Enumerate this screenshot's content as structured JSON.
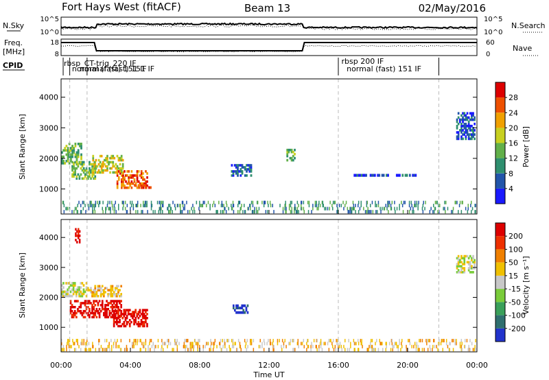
{
  "header": {
    "station": "Fort Hays West (fitACF)",
    "beam": "Beam 13",
    "date": "02/May/2016"
  },
  "noise_panel": {
    "left_label": "N.Sky",
    "left_ticks": [
      "10^5",
      "10^0"
    ],
    "right_ticks": [
      "10^5",
      "10^0"
    ],
    "right_label": "N.Search"
  },
  "freq_panel": {
    "label_line1": "Freq.",
    "label_line2": "[MHz]",
    "left_ticks": [
      "18",
      "8"
    ],
    "right_ticks": [
      "60",
      "0"
    ],
    "right_label": "Nave"
  },
  "cpid_panel": {
    "label": "CPID",
    "mode_labels": [
      {
        "text": "rbsp_CT-trig_220 IF",
        "time": 0.08
      },
      {
        "text": "normal (fast) 151 IF",
        "time": 0.55
      },
      {
        "text": "normal (fast) 151 IF",
        "time": 1.0
      },
      {
        "text": "rbsp 200 IF",
        "time": 16.1
      },
      {
        "text": "normal (fast) 151 IF",
        "time": 16.4
      }
    ]
  },
  "x_axis": {
    "label": "Time UT",
    "tick_labels": [
      "00:00",
      "04:00",
      "08:00",
      "12:00",
      "16:00",
      "20:00",
      "00:00"
    ]
  },
  "chart_data": [
    {
      "type": "heatmap",
      "name": "power",
      "ylabel": "Slant Range [km]",
      "xlim": [
        0,
        24
      ],
      "ylim": [
        180,
        4600
      ],
      "y_ticks": [
        1000,
        2000,
        3000,
        4000
      ],
      "colorbar": {
        "label": "Power [dB]",
        "ticks": [
          "4",
          "8",
          "12",
          "16",
          "20",
          "24",
          "28"
        ],
        "colors": [
          "#1a1aff",
          "#2255aa",
          "#2f8f6f",
          "#62b04a",
          "#c8d020",
          "#f0a000",
          "#ee5000",
          "#dd0000"
        ]
      },
      "mode_change_times": [
        0.5,
        1.5,
        16.0,
        21.8
      ],
      "echo_regions": [
        {
          "t0": 0.0,
          "t1": 1.2,
          "r0": 1800,
          "r1": 2500,
          "level": 3
        },
        {
          "t0": 0.6,
          "t1": 2.0,
          "r0": 1300,
          "r1": 1900,
          "level": 3
        },
        {
          "t0": 1.8,
          "t1": 3.6,
          "r0": 1500,
          "r1": 2100,
          "level": 4
        },
        {
          "t0": 3.2,
          "t1": 5.0,
          "r0": 1000,
          "r1": 1600,
          "level": 6
        },
        {
          "t0": 4.2,
          "t1": 5.2,
          "r0": 1000,
          "r1": 1150,
          "level": 6
        },
        {
          "t0": 9.8,
          "t1": 11.0,
          "r0": 1400,
          "r1": 1800,
          "level": 1
        },
        {
          "t0": 13.0,
          "t1": 13.6,
          "r0": 1900,
          "r1": 2300,
          "level": 3
        },
        {
          "t0": 16.8,
          "t1": 20.5,
          "r0": 1400,
          "r1": 1480,
          "level": 1
        },
        {
          "t0": 22.8,
          "t1": 23.9,
          "r0": 2600,
          "r1": 3500,
          "level": 1
        },
        {
          "t0": 0.0,
          "t1": 24.0,
          "r0": 200,
          "r1": 600,
          "level": 2
        }
      ]
    },
    {
      "type": "heatmap",
      "name": "velocity",
      "ylabel": "Slant Range [km]",
      "xlim": [
        0,
        24
      ],
      "ylim": [
        180,
        4600
      ],
      "y_ticks": [
        1000,
        2000,
        3000,
        4000
      ],
      "colorbar": {
        "label": "Velocity [m s⁻¹]",
        "ticks": [
          "200",
          "100",
          "50",
          "15",
          "-15",
          "-50",
          "-100",
          "-200"
        ],
        "colors": [
          "#2233cc",
          "#2f6f6f",
          "#3aa05a",
          "#7acc3a",
          "#c8c8c8",
          "#f0c000",
          "#f08000",
          "#ee3000",
          "#dd0000"
        ]
      },
      "mode_change_times": [
        0.5,
        1.5,
        16.0,
        21.8
      ],
      "echo_regions": [
        {
          "t0": 0.0,
          "t1": 1.5,
          "r0": 2000,
          "r1": 2500,
          "level": 4
        },
        {
          "t0": 0.5,
          "t1": 3.5,
          "r0": 1300,
          "r1": 1900,
          "level": 8
        },
        {
          "t0": 1.5,
          "t1": 3.5,
          "r0": 2000,
          "r1": 2400,
          "level": 5
        },
        {
          "t0": 3.0,
          "t1": 5.0,
          "r0": 1000,
          "r1": 1600,
          "level": 8
        },
        {
          "t0": 9.9,
          "t1": 10.8,
          "r0": 1450,
          "r1": 1750,
          "level": 0
        },
        {
          "t0": 0.8,
          "t1": 1.1,
          "r0": 3800,
          "r1": 4300,
          "level": 8
        },
        {
          "t0": 22.8,
          "t1": 23.9,
          "r0": 2800,
          "r1": 3400,
          "level": 4
        },
        {
          "t0": 0.0,
          "t1": 24.0,
          "r0": 200,
          "r1": 600,
          "level": 5
        }
      ]
    }
  ]
}
